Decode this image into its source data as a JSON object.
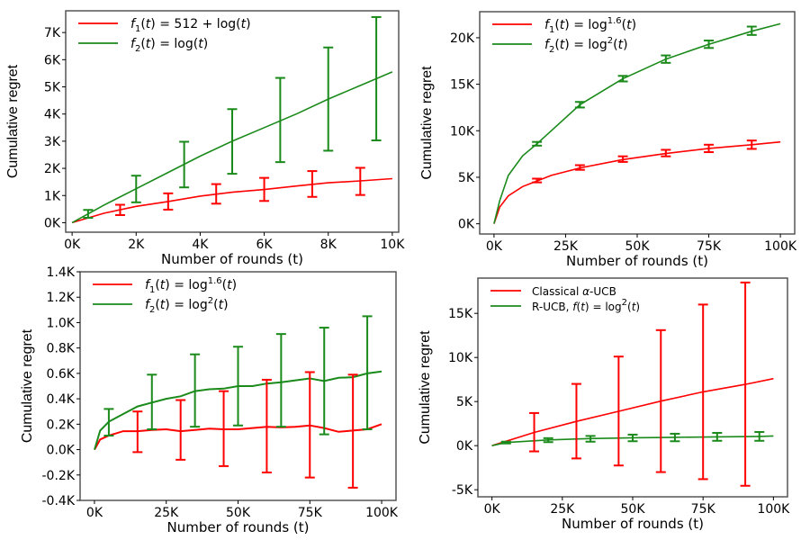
{
  "colors": {
    "red": "#ff0000",
    "green": "#1a8a1a"
  },
  "chart_data": [
    {
      "type": "line",
      "xlabel": "Number of rounds (t)",
      "ylabel": "Cumulative regret",
      "xlim": [
        -200,
        10200
      ],
      "ylim": [
        -350,
        7800
      ],
      "xticks": [
        0,
        2000,
        4000,
        6000,
        8000,
        10000
      ],
      "xtick_labels": [
        "0K",
        "2K",
        "4K",
        "6K",
        "8K",
        "10K"
      ],
      "yticks": [
        0,
        1000,
        2000,
        3000,
        4000,
        5000,
        6000,
        7000
      ],
      "ytick_labels": [
        "0K",
        "1K",
        "2K",
        "3K",
        "4K",
        "5K",
        "6K",
        "7K"
      ],
      "legend_position": "top-left",
      "series": [
        {
          "name": "f1",
          "legend_label": "f₁(t) = 512 + log(t)",
          "color": "#ff0000",
          "x": [
            0,
            1000,
            2000,
            3000,
            4000,
            5000,
            6000,
            7000,
            8000,
            9000,
            10000
          ],
          "y": [
            0,
            350,
            600,
            780,
            980,
            1120,
            1220,
            1350,
            1470,
            1540,
            1620
          ],
          "errorbars": {
            "x": [
              1500,
              3000,
              4500,
              6000,
              7500,
              9000
            ],
            "mean": [
              470,
              780,
              1070,
              1220,
              1420,
              1520
            ],
            "low": [
              280,
              480,
              700,
              800,
              950,
              1020
            ],
            "high": [
              660,
              1080,
              1420,
              1650,
              1900,
              2020
            ]
          }
        },
        {
          "name": "f2",
          "legend_label": "f₂(t) = log(t)",
          "color": "#1a8a1a",
          "x": [
            0,
            1000,
            2000,
            3000,
            4000,
            5000,
            6000,
            7000,
            8000,
            9000,
            10000
          ],
          "y": [
            0,
            650,
            1250,
            1850,
            2450,
            3000,
            3500,
            4000,
            4550,
            5050,
            5550
          ],
          "errorbars": {
            "x": [
              500,
              2000,
              3500,
              5000,
              6500,
              8000,
              9500
            ],
            "mean": [
              320,
              1250,
              2150,
              3000,
              3800,
              4550,
              5300
            ],
            "low": [
              180,
              750,
              1300,
              1800,
              2230,
              2650,
              3030
            ],
            "high": [
              470,
              1730,
              2980,
              4180,
              5330,
              6450,
              7570
            ]
          }
        }
      ]
    },
    {
      "type": "line",
      "xlabel": "Number of rounds (t)",
      "ylabel": "Cumulative regret",
      "xlim": [
        -5000,
        105000
      ],
      "ylim": [
        -1100,
        22800
      ],
      "xticks": [
        0,
        25000,
        50000,
        75000,
        100000
      ],
      "xtick_labels": [
        "0K",
        "25K",
        "50K",
        "75K",
        "100K"
      ],
      "yticks": [
        0,
        5000,
        10000,
        15000,
        20000
      ],
      "ytick_labels": [
        "0K",
        "5K",
        "10K",
        "15K",
        "20K"
      ],
      "legend_position": "top-left",
      "series": [
        {
          "name": "f1",
          "legend_label": "f₁(t) = log^1.6(t)",
          "color": "#ff0000",
          "x": [
            0,
            2000,
            5000,
            10000,
            15000,
            20000,
            30000,
            45000,
            60000,
            75000,
            90000,
            100000
          ],
          "y": [
            0,
            1800,
            3000,
            4000,
            4600,
            5200,
            6000,
            6900,
            7550,
            8100,
            8500,
            8800
          ],
          "errorbars": {
            "x": [
              15000,
              30000,
              45000,
              60000,
              75000,
              90000
            ],
            "mean": [
              4650,
              6050,
              6950,
              7600,
              8100,
              8500
            ],
            "low": [
              4450,
              5800,
              6650,
              7250,
              7700,
              8050
            ],
            "high": [
              4850,
              6300,
              7250,
              7950,
              8500,
              8950
            ]
          }
        },
        {
          "name": "f2",
          "legend_label": "f₂(t) = log²(t)",
          "color": "#1a8a1a",
          "x": [
            0,
            2000,
            5000,
            10000,
            15000,
            20000,
            30000,
            45000,
            60000,
            75000,
            90000,
            100000
          ],
          "y": [
            0,
            2500,
            5200,
            7300,
            8600,
            10000,
            12800,
            15600,
            17700,
            19300,
            20700,
            21500
          ],
          "errorbars": {
            "x": [
              15000,
              30000,
              45000,
              60000,
              75000,
              90000
            ],
            "mean": [
              8600,
              12800,
              15600,
              17700,
              19300,
              20700
            ],
            "low": [
              8400,
              12500,
              15300,
              17300,
              18900,
              20300
            ],
            "high": [
              8800,
              13100,
              15900,
              18100,
              19700,
              21200
            ]
          }
        }
      ]
    },
    {
      "type": "line",
      "xlabel": "Number of rounds (t)",
      "ylabel": "Cumulative regret",
      "xlim": [
        -5000,
        105000
      ],
      "ylim": [
        -400,
        1400
      ],
      "xticks": [
        0,
        25000,
        50000,
        75000,
        100000
      ],
      "xtick_labels": [
        "0K",
        "25K",
        "50K",
        "75K",
        "100K"
      ],
      "yticks": [
        -400,
        -200,
        0,
        200,
        400,
        600,
        800,
        1000,
        1200,
        1400
      ],
      "ytick_labels": [
        "-0.4K",
        "-0.2K",
        "0.0K",
        "0.2K",
        "0.4K",
        "0.6K",
        "0.8K",
        "1.0K",
        "1.2K",
        "1.4K"
      ],
      "legend_position": "top-left",
      "series": [
        {
          "name": "f1",
          "legend_label": "f₁(t) = log^1.6(t)",
          "color": "#ff0000",
          "x": [
            0,
            2000,
            5000,
            10000,
            15000,
            20000,
            25000,
            30000,
            35000,
            40000,
            45000,
            50000,
            55000,
            60000,
            65000,
            70000,
            75000,
            80000,
            85000,
            90000,
            95000,
            100000
          ],
          "y": [
            0,
            80,
            110,
            145,
            145,
            155,
            160,
            145,
            155,
            165,
            160,
            160,
            170,
            180,
            175,
            180,
            190,
            170,
            140,
            150,
            160,
            200
          ],
          "errorbars": {
            "x": [
              15000,
              30000,
              45000,
              60000,
              75000,
              90000
            ],
            "mean": [
              140,
              150,
              160,
              180,
              190,
              150
            ],
            "low": [
              -20,
              -80,
              -130,
              -180,
              -220,
              -300
            ],
            "high": [
              300,
              390,
              460,
              550,
              610,
              590
            ]
          }
        },
        {
          "name": "f2",
          "legend_label": "f₂(t) = log²(t)",
          "color": "#1a8a1a",
          "x": [
            0,
            2000,
            5000,
            10000,
            15000,
            20000,
            25000,
            30000,
            35000,
            40000,
            45000,
            50000,
            55000,
            60000,
            65000,
            70000,
            75000,
            80000,
            85000,
            90000,
            95000,
            100000
          ],
          "y": [
            0,
            150,
            220,
            280,
            340,
            370,
            400,
            420,
            460,
            475,
            480,
            500,
            500,
            520,
            530,
            545,
            560,
            540,
            565,
            570,
            600,
            615
          ],
          "errorbars": {
            "x": [
              5000,
              20000,
              35000,
              50000,
              65000,
              80000,
              95000
            ],
            "mean": [
              220,
              370,
              460,
              500,
              540,
              540,
              600
            ],
            "low": [
              110,
              160,
              180,
              190,
              180,
              120,
              160
            ],
            "high": [
              320,
              590,
              750,
              810,
              910,
              960,
              1050
            ]
          }
        }
      ]
    },
    {
      "type": "line",
      "xlabel": "Number of rounds (t)",
      "ylabel": "Cumulative regret",
      "xlim": [
        -5000,
        105000
      ],
      "ylim": [
        -5800,
        19000
      ],
      "xticks": [
        0,
        25000,
        50000,
        75000,
        100000
      ],
      "xtick_labels": [
        "0K",
        "25K",
        "50K",
        "75K",
        "100K"
      ],
      "yticks": [
        -5000,
        0,
        5000,
        10000,
        15000
      ],
      "ytick_labels": [
        "-5K",
        "0K",
        "5K",
        "10K",
        "15K"
      ],
      "legend_position": "top-left",
      "series": [
        {
          "name": "classical",
          "legend_label": "Classical α-UCB",
          "color": "#ff0000",
          "x": [
            0,
            15000,
            30000,
            45000,
            60000,
            75000,
            90000,
            100000
          ],
          "y": [
            0,
            1500,
            2750,
            3900,
            5050,
            6100,
            6950,
            7600
          ],
          "errorbars": {
            "x": [
              15000,
              30000,
              45000,
              60000,
              75000,
              90000
            ],
            "mean": [
              1500,
              2750,
              3900,
              5050,
              6100,
              6950
            ],
            "low": [
              -650,
              -1450,
              -2250,
              -3000,
              -3800,
              -4550
            ],
            "high": [
              3700,
              7000,
              10100,
              13100,
              16000,
              18500
            ]
          }
        },
        {
          "name": "rucb",
          "legend_label": "R-UCB, f(t) = log²(t)",
          "color": "#1a8a1a",
          "x": [
            0,
            5000,
            20000,
            35000,
            50000,
            65000,
            80000,
            95000,
            100000
          ],
          "y": [
            0,
            350,
            650,
            800,
            900,
            950,
            1000,
            1050,
            1100
          ],
          "errorbars": {
            "x": [
              5000,
              20000,
              35000,
              50000,
              65000,
              80000,
              95000
            ],
            "mean": [
              350,
              650,
              800,
              900,
              950,
              1000,
              1100
            ],
            "low": [
              250,
              400,
              450,
              500,
              500,
              550,
              550
            ],
            "high": [
              450,
              850,
              1100,
              1250,
              1350,
              1450,
              1550
            ]
          }
        }
      ]
    }
  ]
}
